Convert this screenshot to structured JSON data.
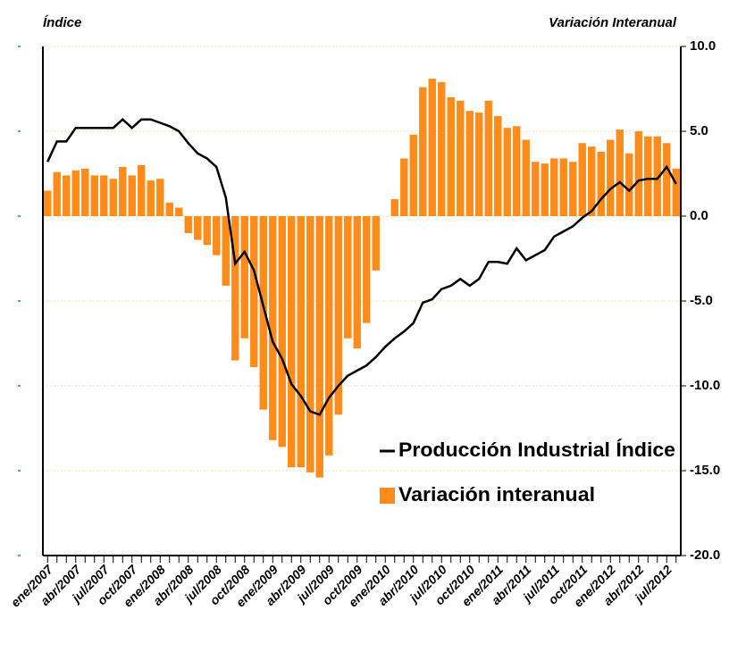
{
  "chart_data": {
    "type": "bar_line",
    "y_label_left": "Índice",
    "y_label_right": "Variación Interanual",
    "categories": [
      "ene/2007",
      null,
      null,
      "abr/2007",
      null,
      null,
      "jul/2007",
      null,
      null,
      "oct/2007",
      null,
      null,
      "ene/2008",
      null,
      null,
      "abr/2008",
      null,
      null,
      "jul/2008",
      null,
      null,
      "oct/2008",
      null,
      null,
      "ene/2009",
      null,
      null,
      "abr/2009",
      null,
      null,
      "jul/2009",
      null,
      null,
      "oct/2009",
      null,
      null,
      "ene/2010",
      null,
      null,
      "abr/2010",
      null,
      null,
      "jul/2010",
      null,
      null,
      "oct/2010",
      null,
      null,
      "ene/2011",
      null,
      null,
      "abr/2011",
      null,
      null,
      "jul/2011",
      null,
      null,
      "oct/2011",
      null,
      null,
      "ene/2012",
      null,
      null,
      "abr/2012",
      null,
      null,
      "jul/2012",
      null
    ],
    "series": [
      {
        "name": "Producción Industrial Índice",
        "type": "line",
        "color": "#000000",
        "values": [
          3.2,
          4.4,
          4.4,
          5.2,
          5.2,
          5.2,
          5.2,
          5.2,
          5.7,
          5.2,
          5.7,
          5.7,
          5.5,
          5.3,
          5.0,
          4.3,
          3.7,
          3.4,
          2.9,
          1.1,
          -2.8,
          -2.1,
          -3.2,
          -5.3,
          -7.4,
          -8.4,
          -9.9,
          -10.6,
          -11.5,
          -11.7,
          -10.7,
          -10.0,
          -9.4,
          -9.1,
          -8.8,
          -8.3,
          -7.7,
          -7.2,
          -6.8,
          -6.3,
          -5.1,
          -4.9,
          -4.3,
          -4.1,
          -3.7,
          -4.1,
          -3.7,
          -2.7,
          -2.7,
          -2.8,
          -1.9,
          -2.6,
          -2.3,
          -2.0,
          -1.2,
          -0.9,
          -0.6,
          -0.1,
          0.3,
          1.0,
          1.6,
          2.0,
          1.5,
          2.1,
          2.2,
          2.2,
          2.9,
          1.9
        ]
      },
      {
        "name": "Variación interanual",
        "type": "bar",
        "color": "#ff8c1a",
        "values": [
          1.5,
          2.6,
          2.4,
          2.7,
          2.8,
          2.4,
          2.4,
          2.2,
          2.9,
          2.4,
          3.0,
          2.1,
          2.2,
          0.8,
          0.5,
          -1.0,
          -1.4,
          -1.7,
          -2.3,
          -4.1,
          -8.5,
          -7.2,
          -8.9,
          -11.4,
          -13.2,
          -13.6,
          -14.8,
          -14.8,
          -15.1,
          -15.4,
          -14.1,
          -11.7,
          -7.2,
          -7.8,
          -6.3,
          -3.2,
          0.0,
          1.0,
          3.4,
          4.8,
          7.6,
          8.1,
          7.9,
          7.0,
          6.8,
          6.2,
          6.1,
          6.8,
          5.9,
          5.2,
          5.3,
          4.5,
          3.2,
          3.1,
          3.4,
          3.4,
          3.2,
          4.3,
          4.1,
          3.8,
          4.5,
          5.1,
          3.7,
          5.0,
          4.7,
          4.7,
          4.3,
          2.8
        ]
      }
    ],
    "ylim": [
      -20,
      10
    ],
    "yticks": [
      {
        "value": -20,
        "label": "-20.0"
      },
      {
        "value": -15,
        "label": "-15.0"
      },
      {
        "value": -10,
        "label": "-10.0"
      },
      {
        "value": -5,
        "label": "-5.0"
      },
      {
        "value": 0,
        "label": "0.0"
      },
      {
        "value": 5,
        "label": "5.0"
      },
      {
        "value": 10,
        "label": "10.0"
      }
    ],
    "grid": true
  }
}
